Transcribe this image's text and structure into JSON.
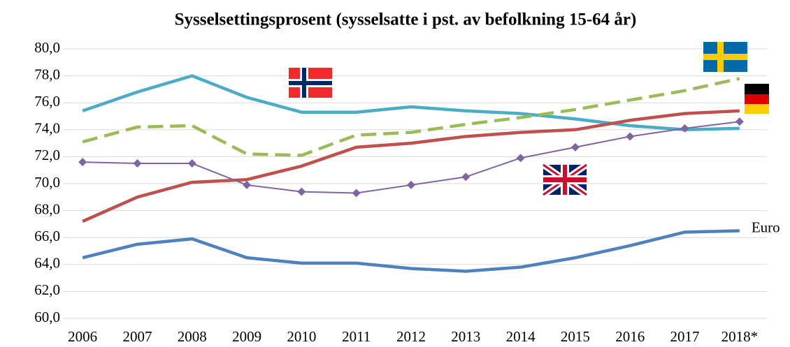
{
  "chart_data": {
    "type": "line",
    "title": "Sysselsettingsprosent (sysselsatte i pst. av befolkning 15-64 år)",
    "categories": [
      "2006",
      "2007",
      "2008",
      "2009",
      "2010",
      "2011",
      "2012",
      "2013",
      "2014",
      "2015",
      "2016",
      "2017",
      "2018*"
    ],
    "series": [
      {
        "color": "#4bacc6",
        "values": [
          75.4,
          76.8,
          78.0,
          76.4,
          75.3,
          75.3,
          75.7,
          75.4,
          75.2,
          74.8,
          74.3,
          74.0,
          74.1
        ]
      },
      {
        "color": "#9bbb59",
        "dashed": true,
        "values": [
          73.1,
          74.2,
          74.3,
          72.2,
          72.1,
          73.6,
          73.8,
          74.4,
          74.9,
          75.5,
          76.2,
          76.9,
          77.8
        ]
      },
      {
        "color": "#c0504d",
        "values": [
          67.2,
          69.0,
          70.1,
          70.3,
          71.3,
          72.7,
          73.0,
          73.5,
          73.8,
          74.0,
          74.7,
          75.2,
          75.4
        ]
      },
      {
        "color": "#8064a2",
        "marker": "diamond",
        "values": [
          71.6,
          71.5,
          71.5,
          69.9,
          69.4,
          69.3,
          69.9,
          70.5,
          71.9,
          72.7,
          73.5,
          74.1,
          74.6
        ]
      },
      {
        "name": "Euro",
        "color": "#4f81bd",
        "values": [
          64.5,
          65.5,
          65.9,
          64.5,
          64.1,
          64.1,
          63.7,
          63.5,
          63.8,
          64.5,
          65.4,
          66.4,
          66.5
        ]
      }
    ],
    "ylim": [
      60,
      80
    ],
    "yticks": [
      {
        "value": 60,
        "label": "60,0"
      },
      {
        "value": 62,
        "label": "62,0"
      },
      {
        "value": 64,
        "label": "64,0"
      },
      {
        "value": 66,
        "label": "66,0"
      },
      {
        "value": 68,
        "label": "68,0"
      },
      {
        "value": 70,
        "label": "70,0"
      },
      {
        "value": 72,
        "label": "72,0"
      },
      {
        "value": 74,
        "label": "74,0"
      },
      {
        "value": 76,
        "label": "76,0"
      },
      {
        "value": 78,
        "label": "78,0"
      },
      {
        "value": 80,
        "label": "80,0"
      }
    ],
    "grid": true
  }
}
